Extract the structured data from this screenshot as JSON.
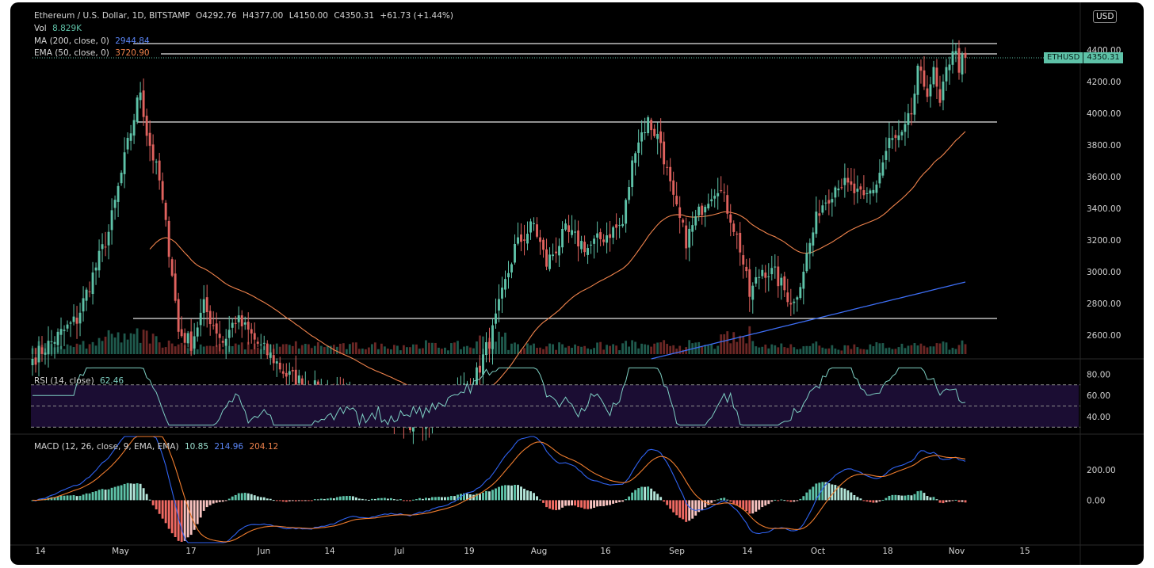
{
  "header": {
    "symbol_line": "Ethereum / U.S. Dollar, 1D, BITSTAMP",
    "open": "O4292.76",
    "high": "H4377.00",
    "low": "L4150.00",
    "close": "C4350.31",
    "change": "+61.73 (+1.44%)",
    "vol_label": "Vol",
    "vol_value": "8.829K",
    "ma_label": "MA (200, close, 0)",
    "ma_value": "2944.84",
    "ema_label": "EMA (50, close, 0)",
    "ema_value": "3720.90"
  },
  "currency_badge": "USD",
  "price_tag": {
    "symbol": "ETHUSD",
    "value": "4350.31"
  },
  "rsi": {
    "label": "RSI (14, close)",
    "value": "62.46"
  },
  "macd": {
    "label": "MACD (12, 26, close, 9, EMA, EMA)",
    "value": "10.85",
    "macd_value": "214.96",
    "signal_value": "204.12"
  },
  "colors": {
    "up": "#5ec2a8",
    "down": "#e0625e",
    "ma200": "#3d6ef5",
    "ema50": "#f0834c",
    "rsi_line": "#7ecfc3",
    "rsi_band": "#1b0d33",
    "macd_line": "#2f62f0",
    "signal_line": "#f07d2e",
    "hist_up_strong": "#5ec2a8",
    "hist_up_weak": "#b4e6da",
    "hist_down_strong": "#f06a63",
    "hist_down_weak": "#f7c3c0"
  },
  "chart_data": {
    "type": "candlestick",
    "x_ticks": [
      "14",
      "May",
      "17",
      "Jun",
      "14",
      "Jul",
      "19",
      "Aug",
      "16",
      "Sep",
      "14",
      "Oct",
      "18",
      "Nov",
      "15"
    ],
    "price_axis": {
      "ticks": [
        "4400.00",
        "4200.00",
        "4000.00",
        "3800.00",
        "3600.00",
        "3400.00",
        "3200.00",
        "3000.00",
        "2800.00",
        "2600.00"
      ],
      "range": [
        2480,
        4560
      ]
    },
    "rsi_axis": {
      "ticks": [
        "80.00",
        "60.00",
        "40.00"
      ],
      "range": [
        25,
        90
      ],
      "band": [
        30,
        70
      ],
      "mid": 50
    },
    "macd_axis": {
      "ticks": [
        "200.00",
        "0.00"
      ],
      "range": [
        -280,
        420
      ]
    },
    "horizontal_levels": [
      4440,
      4375,
      3945,
      2705
    ],
    "current_price": 4350.31,
    "anchors": [
      [
        0,
        2450
      ],
      [
        14,
        2700
      ],
      [
        24,
        3250
      ],
      [
        30,
        3800
      ],
      [
        34,
        4150
      ],
      [
        36,
        3880
      ],
      [
        40,
        3570
      ],
      [
        44,
        3000
      ],
      [
        46,
        2620
      ],
      [
        50,
        2550
      ],
      [
        54,
        2780
      ],
      [
        60,
        2560
      ],
      [
        64,
        2700
      ],
      [
        68,
        2620
      ],
      [
        72,
        2520
      ],
      [
        76,
        2450
      ],
      [
        80,
        2350
      ],
      [
        90,
        2250
      ],
      [
        100,
        2200
      ],
      [
        110,
        2150
      ],
      [
        118,
        2050
      ],
      [
        128,
        2100
      ],
      [
        135,
        2250
      ],
      [
        140,
        2350
      ],
      [
        145,
        2620
      ],
      [
        148,
        2850
      ],
      [
        152,
        3150
      ],
      [
        158,
        3300
      ],
      [
        162,
        3050
      ],
      [
        168,
        3250
      ],
      [
        175,
        3150
      ],
      [
        182,
        3250
      ],
      [
        186,
        3300
      ],
      [
        190,
        3800
      ],
      [
        194,
        3950
      ],
      [
        198,
        3820
      ],
      [
        202,
        3440
      ],
      [
        206,
        3200
      ],
      [
        212,
        3450
      ],
      [
        216,
        3550
      ],
      [
        220,
        3350
      ],
      [
        223,
        3150
      ],
      [
        226,
        2850
      ],
      [
        230,
        3020
      ],
      [
        234,
        2980
      ],
      [
        238,
        2850
      ],
      [
        240,
        2800
      ],
      [
        244,
        3100
      ],
      [
        248,
        3400
      ],
      [
        254,
        3570
      ],
      [
        258,
        3520
      ],
      [
        262,
        3450
      ],
      [
        266,
        3560
      ],
      [
        270,
        3820
      ],
      [
        274,
        3840
      ],
      [
        277,
        4000
      ],
      [
        279,
        4250
      ],
      [
        282,
        4150
      ],
      [
        284,
        4250
      ],
      [
        286,
        4040
      ],
      [
        288,
        4260
      ],
      [
        290,
        4420
      ],
      [
        292,
        4300
      ],
      [
        294,
        4350
      ]
    ]
  }
}
